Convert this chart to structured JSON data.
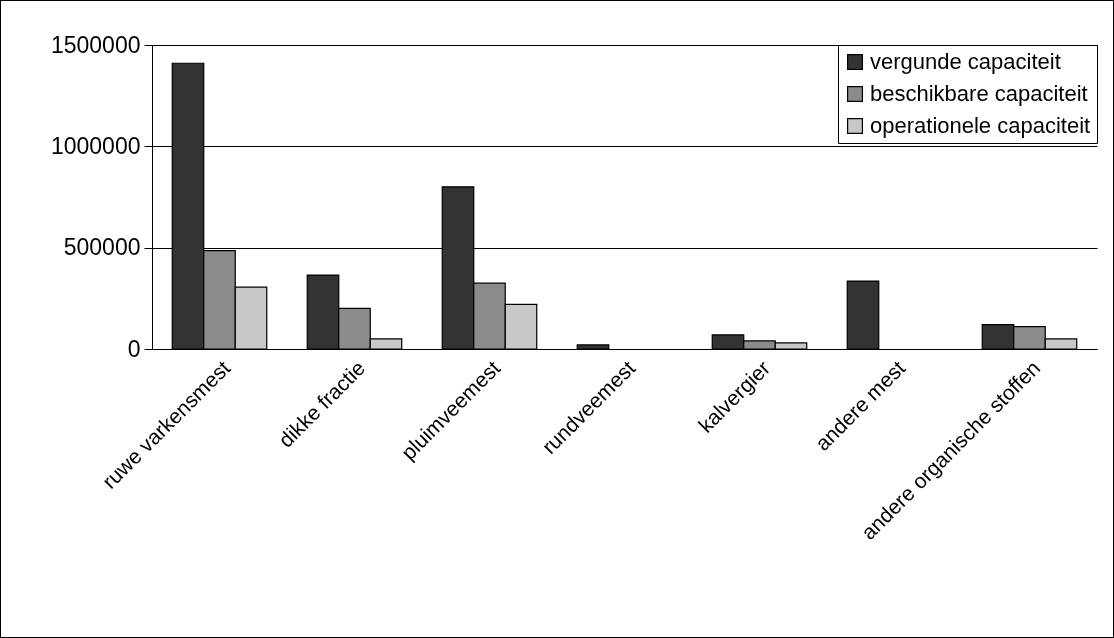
{
  "chart_data": {
    "type": "bar",
    "categories": [
      "ruwe varkensmest",
      "dikke fractie",
      "pluimveemest",
      "rundveemest",
      "kalvergier",
      "andere mest",
      "andere organische stoffen"
    ],
    "series": [
      {
        "name": "vergunde capaciteit",
        "color": "#333333",
        "values": [
          1410000,
          365000,
          800000,
          20000,
          70000,
          335000,
          120000
        ]
      },
      {
        "name": "beschikbare capaciteit",
        "color": "#8c8c8c",
        "values": [
          485000,
          200000,
          325000,
          null,
          40000,
          null,
          110000
        ]
      },
      {
        "name": "operationele capaciteit",
        "color": "#c8c8c8",
        "values": [
          305000,
          50000,
          220000,
          null,
          30000,
          null,
          50000
        ]
      }
    ],
    "ylim": [
      0,
      1500000
    ],
    "yticks": [
      0,
      500000,
      1000000,
      1500000
    ],
    "grid": "y",
    "legend": "top right"
  }
}
